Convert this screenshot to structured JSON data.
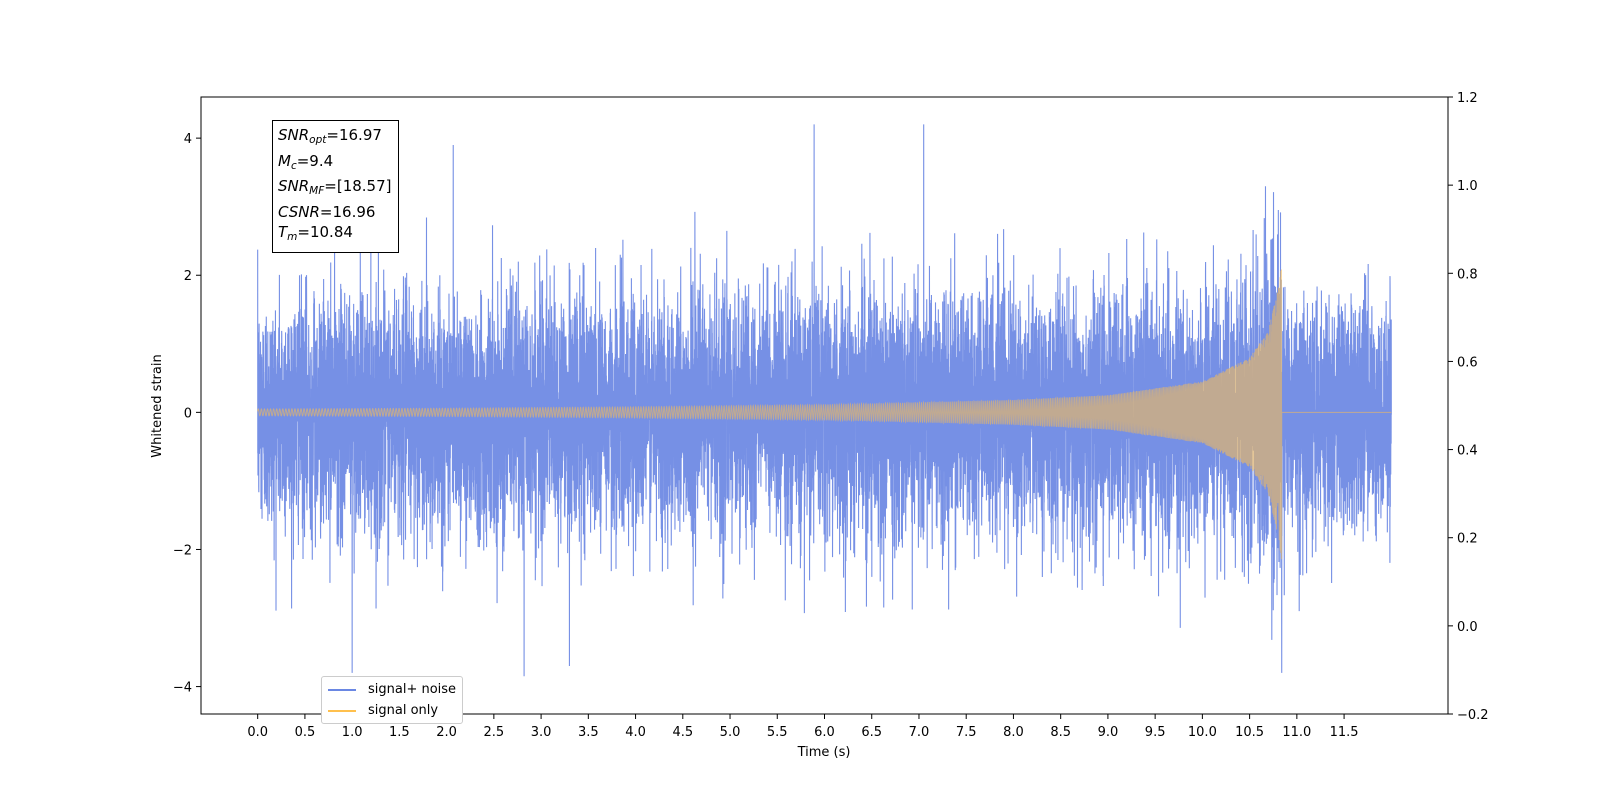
{
  "chart_data": {
    "type": "line",
    "xlabel": "Time (s)",
    "ylabel": "Whitened strain",
    "xlim": [
      -0.6,
      12.6
    ],
    "ylim": [
      -4.4,
      4.6
    ],
    "y2lim": [
      -0.2,
      1.2
    ],
    "x_ticks": [
      "0.0",
      "0.5",
      "1.0",
      "1.5",
      "2.0",
      "2.5",
      "3.0",
      "3.5",
      "4.0",
      "4.5",
      "5.0",
      "5.5",
      "6.0",
      "6.5",
      "7.0",
      "7.5",
      "8.0",
      "8.5",
      "9.0",
      "9.5",
      "10.0",
      "10.5",
      "11.0",
      "11.5"
    ],
    "y_ticks": [
      "4",
      "2",
      "0",
      "−2",
      "−4"
    ],
    "y_tick_values": [
      4,
      2,
      0,
      -2,
      -4
    ],
    "y2_ticks": [
      "1.2",
      "1.0",
      "0.8",
      "0.6",
      "0.4",
      "0.2",
      "0.0",
      "−0.2"
    ],
    "y2_tick_values": [
      1.2,
      1.0,
      0.8,
      0.6,
      0.4,
      0.2,
      0.0,
      -0.2
    ],
    "series": [
      {
        "name": "signal+ noise",
        "color": "#6a87e3",
        "description_values": {
          "t_start": 0.0,
          "t_end": 12.0,
          "noise_band": [
            -1.6,
            1.6
          ],
          "peaks": [
            [
              5.89,
              4.2
            ],
            [
              7.05,
              4.2
            ],
            [
              2.07,
              3.9
            ],
            [
              10.84,
              -3.8
            ],
            [
              2.82,
              -3.85
            ],
            [
              1.0,
              -3.8
            ],
            [
              3.3,
              -3.7
            ]
          ]
        }
      },
      {
        "name": "signal only",
        "color": "#ffc04d",
        "description_values": {
          "t_start": 0.0,
          "t_end": 12.0,
          "merger_time": 10.84,
          "envelope": [
            [
              0.0,
              0.05
            ],
            [
              2.0,
              0.06
            ],
            [
              4.0,
              0.08
            ],
            [
              6.0,
              0.11
            ],
            [
              8.0,
              0.18
            ],
            [
              9.0,
              0.25
            ],
            [
              10.0,
              0.45
            ],
            [
              10.5,
              0.8
            ],
            [
              10.7,
              1.2
            ],
            [
              10.8,
              1.8
            ],
            [
              10.84,
              2.2
            ],
            [
              10.86,
              0.0
            ],
            [
              12.0,
              0.0
            ]
          ]
        }
      }
    ],
    "annotations": {
      "snr_opt_sym": "SNR",
      "snr_opt_sub": "opt",
      "snr_opt_val": "=16.97",
      "mc_sym": "M",
      "mc_sub": "c",
      "mc_val": "=9.4",
      "snr_mf_sym": "SNR",
      "snr_mf_sub": "MF",
      "snr_mf_val": "=[18.57]",
      "csnr_sym": "CSNR",
      "csnr_val": "=16.96",
      "tm_sym": "T",
      "tm_sub": "m",
      "tm_val": "=10.84"
    },
    "legend": {
      "placement": "lower-left",
      "items": [
        {
          "label": "signal+ noise",
          "color": "#6a87e3"
        },
        {
          "label": "signal only",
          "color": "#ffc04d"
        }
      ]
    }
  }
}
